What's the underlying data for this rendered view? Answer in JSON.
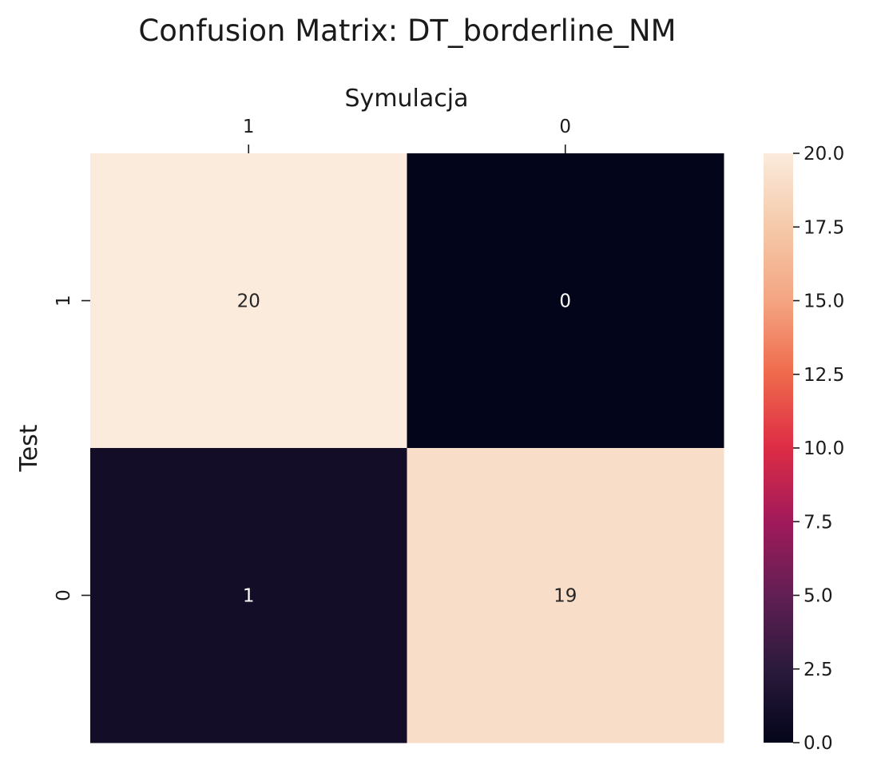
{
  "chart_data": {
    "type": "heatmap",
    "title": "Confusion Matrix: DT_borderline_NM",
    "xlabel": "Symulacja",
    "ylabel": "Test",
    "x_categories": [
      "1",
      "0"
    ],
    "y_categories": [
      "1",
      "0"
    ],
    "matrix": [
      [
        20,
        0
      ],
      [
        1,
        19
      ]
    ],
    "colorbar": {
      "min": 0.0,
      "max": 20.0,
      "ticks": [
        "0.0",
        "2.5",
        "5.0",
        "7.5",
        "10.0",
        "12.5",
        "15.0",
        "17.5",
        "20.0"
      ],
      "colormap": "rocket",
      "colormap_stops": [
        "#03051a",
        "#2b1a3c",
        "#611f53",
        "#a11a5b",
        "#dd2c45",
        "#ef6a4c",
        "#f4a582",
        "#f5c9a9",
        "#faebdd"
      ]
    },
    "x_axis_position": "top",
    "grid": false,
    "legend": "colorbar-right"
  }
}
